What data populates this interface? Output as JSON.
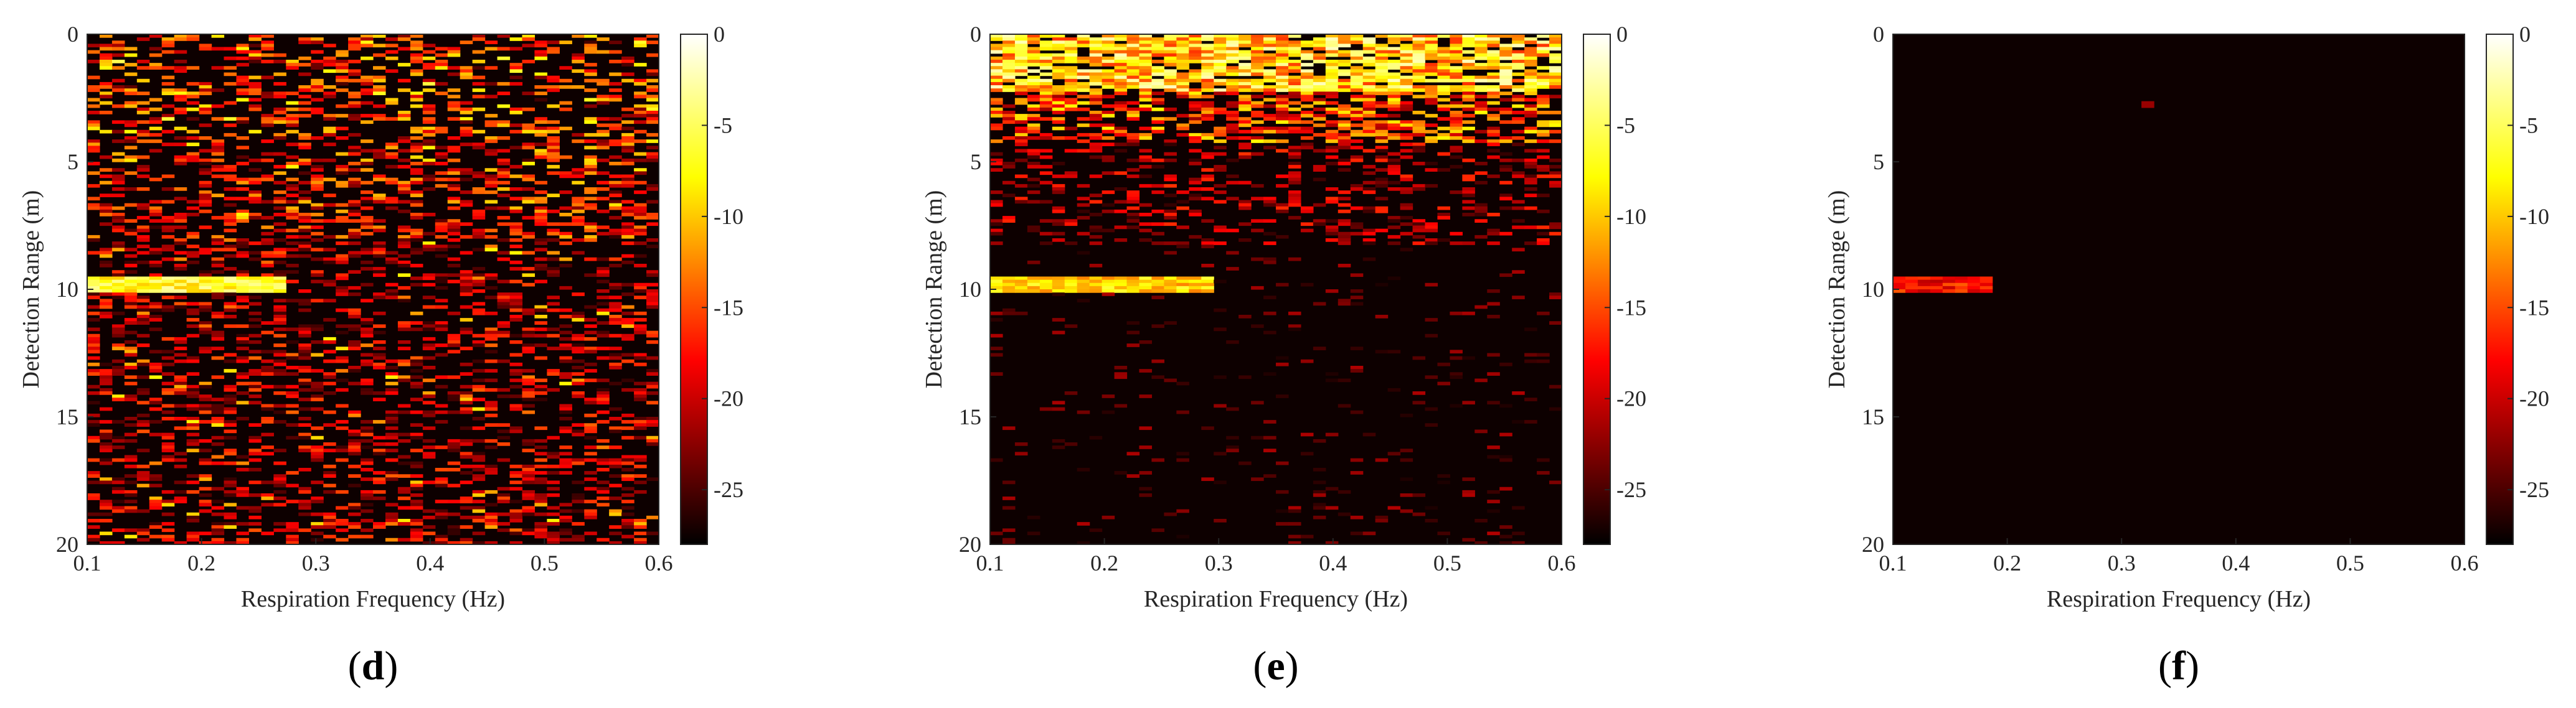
{
  "chart_data": [
    {
      "type": "heatmap",
      "panel_label": "d",
      "xlabel": "Respiration Frequency (Hz)",
      "ylabel": "Detection Range (m)",
      "xlim": [
        0.1,
        0.6
      ],
      "ylim": [
        0,
        20
      ],
      "xticks": [
        "0.1",
        "0.2",
        "0.3",
        "0.4",
        "0.5",
        "0.6"
      ],
      "yticks": [
        "0",
        "5",
        "10",
        "15",
        "20"
      ],
      "colorbar": {
        "range": [
          -28,
          0
        ],
        "ticks": [
          "0",
          "-5",
          "-10",
          "-15",
          "-20",
          "-25"
        ],
        "colormap": "hot"
      },
      "pattern": {
        "background_db": -28,
        "noise_level": "high",
        "target_range_m": 9.8,
        "target_freq_hz": [
          0.1,
          0.27
        ],
        "target_db": -3
      }
    },
    {
      "type": "heatmap",
      "panel_label": "e",
      "xlabel": "Respiration Frequency (Hz)",
      "ylabel": "Detection Range (m)",
      "xlim": [
        0.1,
        0.6
      ],
      "ylim": [
        0,
        20
      ],
      "xticks": [
        "0.1",
        "0.2",
        "0.3",
        "0.4",
        "0.5",
        "0.6"
      ],
      "yticks": [
        "0",
        "5",
        "10",
        "15",
        "20"
      ],
      "colorbar": {
        "range": [
          -28,
          0
        ],
        "ticks": [
          "0",
          "-5",
          "-10",
          "-15",
          "-20",
          "-25"
        ],
        "colormap": "hot"
      },
      "pattern": {
        "background_db": -28,
        "noise_level": "medium",
        "clutter_range_m": [
          0,
          8
        ],
        "target_range_m": 9.8,
        "target_freq_hz": [
          0.1,
          0.3
        ],
        "target_db": -6
      }
    },
    {
      "type": "heatmap",
      "panel_label": "f",
      "xlabel": "Respiration Frequency (Hz)",
      "ylabel": "Detection Range (m)",
      "xlim": [
        0.1,
        0.6
      ],
      "ylim": [
        0,
        20
      ],
      "xticks": [
        "0.1",
        "0.2",
        "0.3",
        "0.4",
        "0.5",
        "0.6"
      ],
      "yticks": [
        "0",
        "5",
        "10",
        "15",
        "20"
      ],
      "colorbar": {
        "range": [
          -28,
          0
        ],
        "ticks": [
          "0",
          "-5",
          "-10",
          "-15",
          "-20",
          "-25"
        ],
        "colormap": "hot"
      },
      "pattern": {
        "background_db": -28,
        "noise_level": "none",
        "target_range_m": 9.8,
        "target_freq_hz": [
          0.1,
          0.19
        ],
        "target_db": -14,
        "spurious_point": {
          "range_m": 2.8,
          "freq_hz": 0.32,
          "db": -22
        }
      }
    }
  ]
}
